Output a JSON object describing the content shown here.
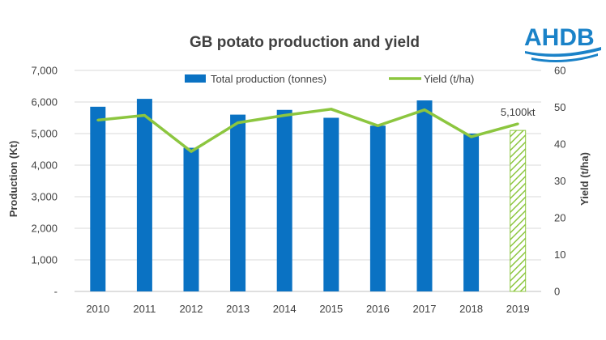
{
  "logo": {
    "text": "AHDB",
    "color": "#1a82c8"
  },
  "chart_data": {
    "type": "bar",
    "title": "GB potato production and yield",
    "categories": [
      "2010",
      "2011",
      "2012",
      "2013",
      "2014",
      "2015",
      "2016",
      "2017",
      "2018",
      "2019"
    ],
    "series": [
      {
        "name": "Total production (tonnes)",
        "type": "bar",
        "axis": "left",
        "color": "#0a72c3",
        "values": [
          5850,
          6100,
          4550,
          5600,
          5750,
          5500,
          5250,
          6050,
          5000,
          null
        ],
        "forecast": {
          "index": 9,
          "value": 5100,
          "pattern": "green-hatched",
          "label": "5,100kt"
        }
      },
      {
        "name": "Yield (t/ha)",
        "type": "line",
        "axis": "right",
        "color": "#8cc63f",
        "values": [
          46.5,
          47.8,
          38.0,
          45.8,
          47.8,
          49.5,
          45.0,
          49.3,
          42.0,
          45.5
        ]
      }
    ],
    "ylabel": "Production (Kt)",
    "ylabel_right": "Yield (t/ha)",
    "ylim": [
      0,
      7000
    ],
    "ylim_right": [
      0,
      60
    ],
    "yticks": [
      "-",
      "1,000",
      "2,000",
      "3,000",
      "4,000",
      "5,000",
      "6,000",
      "7,000"
    ],
    "yticks_right": [
      "0",
      "10",
      "20",
      "30",
      "40",
      "50",
      "60"
    ],
    "grid": true,
    "legend_position": "top-center"
  }
}
